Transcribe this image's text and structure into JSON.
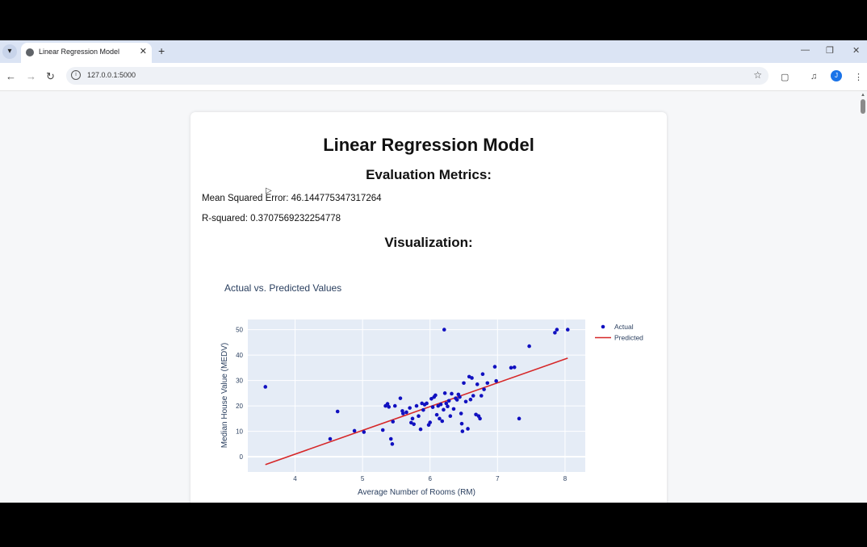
{
  "browser": {
    "tab_title": "Linear Regression Model",
    "url": "127.0.0.1:5000",
    "avatar_initial": "J"
  },
  "page": {
    "title": "Linear Regression Model",
    "metrics_heading": "Evaluation Metrics:",
    "mse_text": "Mean Squared Error: 46.144775347317264",
    "r2_text": "R-squared: 0.3707569232254778",
    "viz_heading": "Visualization:"
  },
  "colors": {
    "actual": "#1010c0",
    "predicted": "#d62728",
    "plot_bg": "#e5ecf6"
  },
  "chart_data": {
    "type": "scatter",
    "title": "Actual vs. Predicted Values",
    "xlabel": "Average Number of Rooms (RM)",
    "ylabel": "Median House Value (MEDV)",
    "xlim": [
      3.3,
      8.3
    ],
    "ylim": [
      -6,
      54
    ],
    "xticks": [
      4,
      5,
      6,
      7,
      8
    ],
    "yticks": [
      0,
      10,
      20,
      30,
      40,
      50
    ],
    "legend_position": "top-right",
    "series": [
      {
        "name": "Actual",
        "mode": "markers",
        "points": [
          [
            3.56,
            27.5
          ],
          [
            4.52,
            7.0
          ],
          [
            4.63,
            17.8
          ],
          [
            4.88,
            10.2
          ],
          [
            5.02,
            9.7
          ],
          [
            5.3,
            10.5
          ],
          [
            5.34,
            20.0
          ],
          [
            5.37,
            20.8
          ],
          [
            5.39,
            19.6
          ],
          [
            5.42,
            7.0
          ],
          [
            5.44,
            5.0
          ],
          [
            5.45,
            13.8
          ],
          [
            5.48,
            20.0
          ],
          [
            5.56,
            23.0
          ],
          [
            5.59,
            18.0
          ],
          [
            5.6,
            17.0
          ],
          [
            5.65,
            17.5
          ],
          [
            5.7,
            19.2
          ],
          [
            5.72,
            13.4
          ],
          [
            5.74,
            15.0
          ],
          [
            5.76,
            12.8
          ],
          [
            5.8,
            20.0
          ],
          [
            5.83,
            16.0
          ],
          [
            5.86,
            10.8
          ],
          [
            5.88,
            21.0
          ],
          [
            5.9,
            18.4
          ],
          [
            5.92,
            20.5
          ],
          [
            5.95,
            21.0
          ],
          [
            5.98,
            12.5
          ],
          [
            6.0,
            13.5
          ],
          [
            6.02,
            22.8
          ],
          [
            6.04,
            19.5
          ],
          [
            6.06,
            23.5
          ],
          [
            6.08,
            24.2
          ],
          [
            6.1,
            16.5
          ],
          [
            6.12,
            20.0
          ],
          [
            6.14,
            15.0
          ],
          [
            6.16,
            20.6
          ],
          [
            6.18,
            14.0
          ],
          [
            6.2,
            18.5
          ],
          [
            6.21,
            50.0
          ],
          [
            6.22,
            25.0
          ],
          [
            6.24,
            21.0
          ],
          [
            6.26,
            19.8
          ],
          [
            6.28,
            22.0
          ],
          [
            6.3,
            16.0
          ],
          [
            6.32,
            24.8
          ],
          [
            6.35,
            18.8
          ],
          [
            6.38,
            23.0
          ],
          [
            6.4,
            22.4
          ],
          [
            6.42,
            24.5
          ],
          [
            6.44,
            23.5
          ],
          [
            6.46,
            17.0
          ],
          [
            6.47,
            13.0
          ],
          [
            6.48,
            10.0
          ],
          [
            6.5,
            29.0
          ],
          [
            6.53,
            21.7
          ],
          [
            6.56,
            11.0
          ],
          [
            6.58,
            31.5
          ],
          [
            6.6,
            22.5
          ],
          [
            6.62,
            31.0
          ],
          [
            6.64,
            24.0
          ],
          [
            6.68,
            16.6
          ],
          [
            6.7,
            28.5
          ],
          [
            6.72,
            16.0
          ],
          [
            6.74,
            15.0
          ],
          [
            6.76,
            24.0
          ],
          [
            6.78,
            32.5
          ],
          [
            6.8,
            26.5
          ],
          [
            6.85,
            29.0
          ],
          [
            6.96,
            35.4
          ],
          [
            6.98,
            29.8
          ],
          [
            7.2,
            35.0
          ],
          [
            7.25,
            35.2
          ],
          [
            7.32,
            15.0
          ],
          [
            7.47,
            43.5
          ],
          [
            7.85,
            48.8
          ],
          [
            7.88,
            50.0
          ],
          [
            8.04,
            50.0
          ]
        ]
      },
      {
        "name": "Predicted",
        "mode": "lines",
        "points": [
          [
            3.56,
            -3.1
          ],
          [
            8.04,
            38.8
          ]
        ]
      }
    ]
  }
}
